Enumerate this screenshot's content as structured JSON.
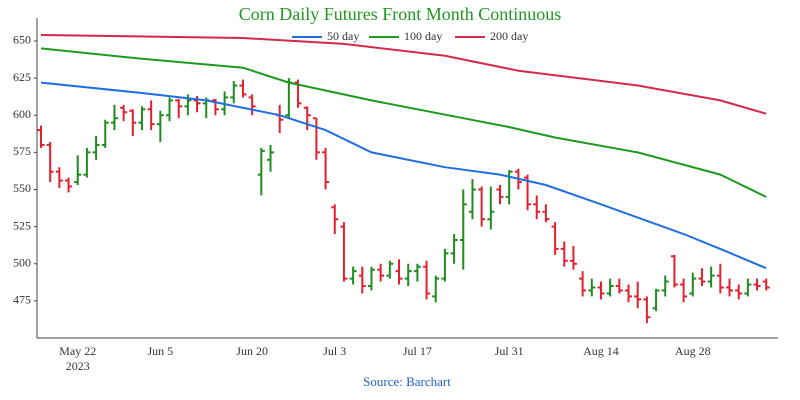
{
  "chart_data": {
    "type": "ohlc",
    "title": "Corn Daily Futures Front Month Continuous",
    "source": "Source: Barchart",
    "up_color": "#1e8c1e",
    "down_color": "#e3202e",
    "x": [
      "2023-05-16",
      "2023-05-17",
      "2023-05-18",
      "2023-05-19",
      "2023-05-22",
      "2023-05-23",
      "2023-05-24",
      "2023-05-25",
      "2023-05-26",
      "2023-05-30",
      "2023-05-31",
      "2023-06-01",
      "2023-06-02",
      "2023-06-05",
      "2023-06-06",
      "2023-06-07",
      "2023-06-08",
      "2023-06-09",
      "2023-06-12",
      "2023-06-13",
      "2023-06-14",
      "2023-06-15",
      "2023-06-16",
      "2023-06-20",
      "2023-06-21",
      "2023-06-22",
      "2023-06-23",
      "2023-06-26",
      "2023-06-27",
      "2023-06-28",
      "2023-06-29",
      "2023-06-30",
      "2023-07-03",
      "2023-07-05",
      "2023-07-06",
      "2023-07-07",
      "2023-07-10",
      "2023-07-11",
      "2023-07-12",
      "2023-07-13",
      "2023-07-14",
      "2023-07-17",
      "2023-07-18",
      "2023-07-19",
      "2023-07-20",
      "2023-07-21",
      "2023-07-24",
      "2023-07-25",
      "2023-07-26",
      "2023-07-27",
      "2023-07-28",
      "2023-07-31",
      "2023-08-01",
      "2023-08-02",
      "2023-08-03",
      "2023-08-04",
      "2023-08-07",
      "2023-08-08",
      "2023-08-09",
      "2023-08-10",
      "2023-08-11",
      "2023-08-14",
      "2023-08-15",
      "2023-08-16",
      "2023-08-17",
      "2023-08-18",
      "2023-08-21",
      "2023-08-22",
      "2023-08-23",
      "2023-08-24",
      "2023-08-25",
      "2023-08-28",
      "2023-08-29",
      "2023-08-30",
      "2023-08-31",
      "2023-09-01",
      "2023-09-05",
      "2023-09-06",
      "2023-09-07",
      "2023-09-08"
    ],
    "open": [
      590,
      580,
      562,
      556,
      555,
      560,
      575,
      580,
      595,
      605,
      603,
      595,
      604,
      594,
      600,
      610,
      606,
      610,
      608,
      610,
      604,
      612,
      620,
      612,
      560,
      570,
      600,
      600,
      622,
      605,
      598,
      575,
      538,
      525,
      490,
      492,
      485,
      496,
      492,
      495,
      490,
      495,
      498,
      478,
      490,
      507,
      516,
      535,
      550,
      530,
      550,
      545,
      562,
      558,
      540,
      535,
      525,
      510,
      502,
      490,
      482,
      484,
      480,
      485,
      482,
      478,
      476,
      470,
      482,
      505,
      486,
      480,
      490,
      488,
      492,
      484,
      482,
      480,
      486,
      488
    ],
    "high": [
      593,
      582,
      565,
      558,
      573,
      578,
      586,
      597,
      607,
      607,
      604,
      606,
      610,
      603,
      612,
      611,
      614,
      613,
      612,
      611,
      616,
      623,
      624,
      614,
      578,
      580,
      607,
      625,
      624,
      606,
      598,
      578,
      540,
      528,
      498,
      498,
      498,
      500,
      502,
      503,
      500,
      500,
      502,
      492,
      510,
      520,
      550,
      557,
      552,
      552,
      553,
      563,
      564,
      560,
      546,
      540,
      528,
      515,
      512,
      495,
      490,
      488,
      490,
      490,
      486,
      488,
      478,
      483,
      492,
      506,
      490,
      494,
      497,
      498,
      500,
      490,
      486,
      490,
      490,
      490
    ],
    "low": [
      578,
      555,
      551,
      548,
      553,
      558,
      570,
      578,
      590,
      596,
      586,
      590,
      590,
      582,
      596,
      598,
      600,
      602,
      598,
      600,
      600,
      608,
      612,
      600,
      546,
      562,
      588,
      598,
      605,
      590,
      570,
      550,
      520,
      488,
      486,
      480,
      482,
      488,
      490,
      486,
      485,
      488,
      476,
      474,
      488,
      500,
      496,
      530,
      525,
      523,
      540,
      540,
      550,
      536,
      530,
      528,
      506,
      498,
      496,
      478,
      478,
      476,
      478,
      480,
      474,
      470,
      460,
      468,
      478,
      484,
      474,
      478,
      485,
      484,
      480,
      478,
      476,
      478,
      482,
      482
    ],
    "close": [
      580,
      562,
      556,
      552,
      560,
      575,
      580,
      595,
      598,
      602,
      595,
      604,
      594,
      600,
      610,
      606,
      610,
      608,
      610,
      604,
      612,
      620,
      614,
      606,
      576,
      575,
      597,
      622,
      608,
      600,
      575,
      555,
      530,
      490,
      495,
      485,
      496,
      492,
      500,
      490,
      495,
      498,
      480,
      490,
      507,
      516,
      540,
      550,
      530,
      535,
      545,
      562,
      555,
      540,
      535,
      530,
      510,
      502,
      500,
      482,
      484,
      480,
      485,
      482,
      478,
      476,
      464,
      482,
      488,
      486,
      478,
      490,
      488,
      492,
      484,
      482,
      480,
      486,
      485,
      484
    ],
    "series": [
      {
        "name": "50 day",
        "color": "#1f6fe0",
        "x": [
          "2023-05-16",
          "2023-06-01",
          "2023-06-12",
          "2023-06-23",
          "2023-06-30",
          "2023-07-10",
          "2023-07-20",
          "2023-07-28",
          "2023-08-04",
          "2023-08-14",
          "2023-08-25",
          "2023-08-31",
          "2023-09-08"
        ],
        "values": [
          622,
          615,
          610,
          600,
          590,
          575,
          565,
          560,
          553,
          540,
          520,
          510,
          497
        ]
      },
      {
        "name": "100 day",
        "color": "#1e9a1e",
        "x": [
          "2023-05-16",
          "2023-06-01",
          "2023-06-16",
          "2023-06-26",
          "2023-07-10",
          "2023-07-24",
          "2023-07-31",
          "2023-08-07",
          "2023-08-18",
          "2023-08-31",
          "2023-09-08"
        ],
        "values": [
          645,
          638,
          632,
          622,
          610,
          598,
          592,
          585,
          575,
          560,
          545
        ]
      },
      {
        "name": "200 day",
        "color": "#d42a4a",
        "x": [
          "2023-05-16",
          "2023-06-16",
          "2023-07-05",
          "2023-07-20",
          "2023-08-01",
          "2023-08-18",
          "2023-08-31",
          "2023-09-08"
        ],
        "values": [
          654,
          652,
          648,
          640,
          630,
          620,
          610,
          601
        ]
      }
    ],
    "ylim": [
      450,
      665
    ],
    "yticks": [
      475,
      500,
      525,
      550,
      575,
      600,
      625,
      650
    ],
    "xticks": [
      {
        "value": "2023-05-22",
        "label": "May 22\n2023"
      },
      {
        "value": "2023-06-05",
        "label": "Jun 5"
      },
      {
        "value": "2023-06-20",
        "label": "Jun 20"
      },
      {
        "value": "2023-07-03",
        "label": "Jul 3"
      },
      {
        "value": "2023-07-17",
        "label": "Jul 17"
      },
      {
        "value": "2023-07-31",
        "label": "Jul 31"
      },
      {
        "value": "2023-08-14",
        "label": "Aug 14"
      },
      {
        "value": "2023-08-28",
        "label": "Aug 28"
      }
    ],
    "legend": "top"
  }
}
